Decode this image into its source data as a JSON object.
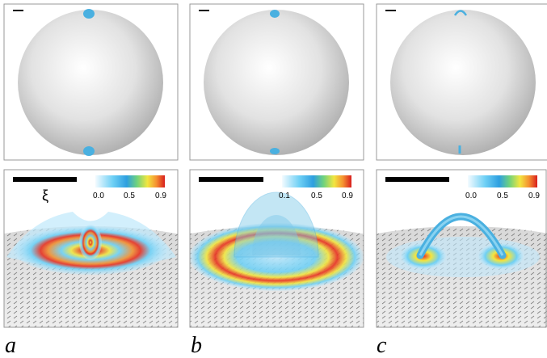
{
  "panels": [
    {
      "label": "a",
      "symbol": "ξ",
      "colorbar_ticks": [
        "0.0",
        "0.5",
        "0.9"
      ]
    },
    {
      "label": "b",
      "colorbar_ticks": [
        "0.1",
        "0.5",
        "0.9"
      ]
    },
    {
      "label": "c",
      "colorbar_ticks": [
        "0.0",
        "0.5",
        "0.9"
      ]
    }
  ]
}
